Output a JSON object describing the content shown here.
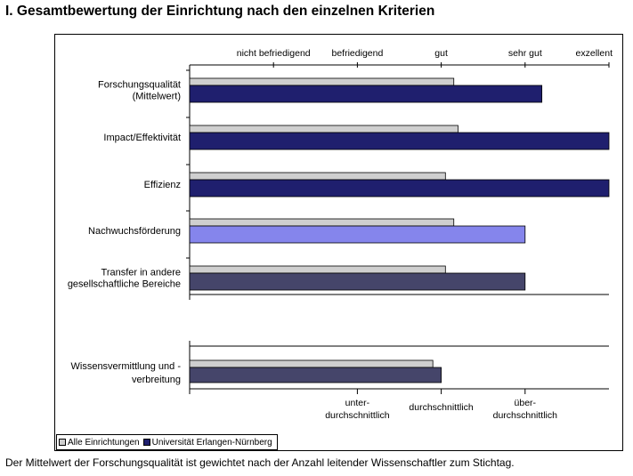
{
  "title": "I. Gesamtbewertung der Einrichtung nach den einzelnen Kriterien",
  "footnote": "Der Mittelwert der Forschungsqualität ist gewichtet nach der Anzahl leitender Wissenschaftler zum Stichtag.",
  "colors": {
    "all_institutions": "#cfcfcf",
    "erlangen_dark": "#1f1f6e",
    "erlangen_light": "#8585ec",
    "erlangen_slate": "#45456a"
  },
  "chart_data": [
    {
      "type": "bar",
      "orientation": "horizontal",
      "top_axis_ticks": [
        "nicht befriedigend",
        "befriedigend",
        "gut",
        "sehr gut",
        "exzellent"
      ],
      "xlim": [
        0,
        5
      ],
      "categories": [
        [
          "Forschungsqualität",
          "(Mittelwert)"
        ],
        [
          "Impact/Effektivität"
        ],
        [
          "Effizienz"
        ],
        [
          "Nachwuchsförderung"
        ],
        [
          "Transfer in andere",
          "gesellschaftliche Bereiche"
        ]
      ],
      "series": [
        {
          "name": "Alle Einrichtungen",
          "values": [
            3.15,
            3.2,
            3.05,
            3.15,
            3.05
          ]
        },
        {
          "name": "Universität Erlangen-Nürnberg",
          "values": [
            4.2,
            5.0,
            5.0,
            4.0,
            4.0
          ]
        }
      ]
    },
    {
      "type": "bar",
      "orientation": "horizontal",
      "bottom_axis_ticks": [
        [
          "unter-",
          "durchschnittlich"
        ],
        [
          "durchschnittlich"
        ],
        [
          "über-",
          "durchschnittlich"
        ]
      ],
      "xlim": [
        0,
        5
      ],
      "categories": [
        [
          "Wissensvermittlung und -",
          "verbreitung"
        ]
      ],
      "series": [
        {
          "name": "Alle Einrichtungen",
          "values": [
            2.9
          ]
        },
        {
          "name": "Universität Erlangen-Nürnberg",
          "values": [
            3.0
          ]
        }
      ]
    }
  ],
  "legend": [
    {
      "label": "Alle Einrichtungen",
      "color": "#cfcfcf"
    },
    {
      "label": "Universität Erlangen-Nürnberg",
      "color": "#1f1f6e"
    }
  ]
}
